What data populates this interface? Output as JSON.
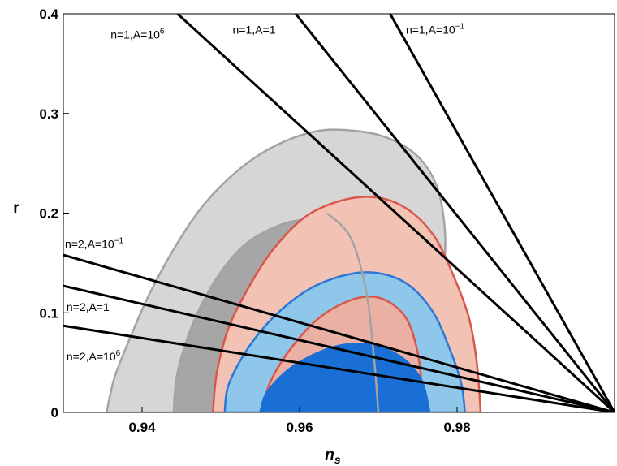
{
  "chart_data": {
    "type": "contour-with-lines",
    "xlabel": "n",
    "xlabel_sub": "s",
    "ylabel": "r",
    "xlim": [
      0.93,
      1.0
    ],
    "ylim": [
      0,
      0.4
    ],
    "x_ticks": [
      {
        "value": 0.94,
        "label": "0.94"
      },
      {
        "value": 0.96,
        "label": "0.96"
      },
      {
        "value": 0.98,
        "label": "0.98"
      }
    ],
    "y_ticks": [
      {
        "value": 0,
        "label": "0"
      },
      {
        "value": 0.1,
        "label": "0.1"
      },
      {
        "value": 0.2,
        "label": "0.2"
      },
      {
        "value": 0.3,
        "label": "0.3"
      },
      {
        "value": 0.4,
        "label": "0.4"
      }
    ],
    "colors": {
      "grey_outer": "#d6d6d6",
      "grey_inner": "#a6a6a6",
      "grey_edge": "#a3a3a3",
      "red_outer": "#f2c2b4",
      "red_inner": "#e9b0a3",
      "red_edge": "#d9564a",
      "blue_outer": "#8ec7ea",
      "blue_inner": "#1a6fd6",
      "blue_edge": "#2b78d8",
      "line": "#000000"
    },
    "contours": [
      {
        "name": "grey-outer",
        "fill": "grey_outer",
        "edge": "grey_edge",
        "points": [
          [
            0.9355,
            0
          ],
          [
            0.9365,
            0.035
          ],
          [
            0.9385,
            0.075
          ],
          [
            0.941,
            0.12
          ],
          [
            0.9445,
            0.17
          ],
          [
            0.948,
            0.21
          ],
          [
            0.9525,
            0.245
          ],
          [
            0.957,
            0.268
          ],
          [
            0.962,
            0.282
          ],
          [
            0.9665,
            0.283
          ],
          [
            0.971,
            0.276
          ],
          [
            0.975,
            0.257
          ],
          [
            0.9775,
            0.225
          ],
          [
            0.9785,
            0.175
          ],
          [
            0.978,
            0.12
          ],
          [
            0.9775,
            0.07
          ],
          [
            0.977,
            0.03
          ],
          [
            0.9765,
            0
          ]
        ]
      },
      {
        "name": "grey-inner",
        "fill": "grey_inner",
        "edge": "grey_edge",
        "points": [
          [
            0.944,
            0
          ],
          [
            0.9445,
            0.04
          ],
          [
            0.9465,
            0.09
          ],
          [
            0.9495,
            0.135
          ],
          [
            0.953,
            0.168
          ],
          [
            0.9575,
            0.188
          ],
          [
            0.961,
            0.193
          ],
          [
            0.9635,
            0.185
          ],
          [
            0.9655,
            0.16
          ],
          [
            0.967,
            0.12
          ],
          [
            0.9675,
            0.07
          ],
          [
            0.968,
            0.03
          ],
          [
            0.9685,
            0
          ]
        ]
      },
      {
        "name": "red-outer",
        "fill": "red_outer",
        "edge": "red_edge",
        "points": [
          [
            0.949,
            0
          ],
          [
            0.9495,
            0.04
          ],
          [
            0.951,
            0.085
          ],
          [
            0.9535,
            0.125
          ],
          [
            0.9565,
            0.162
          ],
          [
            0.9605,
            0.195
          ],
          [
            0.965,
            0.212
          ],
          [
            0.9695,
            0.216
          ],
          [
            0.9735,
            0.205
          ],
          [
            0.977,
            0.178
          ],
          [
            0.9795,
            0.138
          ],
          [
            0.9815,
            0.095
          ],
          [
            0.9825,
            0.05
          ],
          [
            0.983,
            0
          ]
        ]
      },
      {
        "name": "blue-outer",
        "fill": "blue_outer",
        "edge": "blue_edge",
        "points": [
          [
            0.9505,
            0
          ],
          [
            0.951,
            0.028
          ],
          [
            0.9535,
            0.065
          ],
          [
            0.957,
            0.098
          ],
          [
            0.9615,
            0.125
          ],
          [
            0.9665,
            0.139
          ],
          [
            0.9705,
            0.139
          ],
          [
            0.974,
            0.127
          ],
          [
            0.977,
            0.1
          ],
          [
            0.979,
            0.065
          ],
          [
            0.9805,
            0.03
          ],
          [
            0.981,
            0
          ]
        ]
      },
      {
        "name": "red-inner",
        "fill": "red_inner",
        "edge": "red_edge",
        "points": [
          [
            0.9555,
            0
          ],
          [
            0.956,
            0.025
          ],
          [
            0.9585,
            0.06
          ],
          [
            0.9625,
            0.095
          ],
          [
            0.967,
            0.114
          ],
          [
            0.9705,
            0.114
          ],
          [
            0.9735,
            0.095
          ],
          [
            0.975,
            0.06
          ],
          [
            0.9755,
            0.025
          ],
          [
            0.9755,
            0
          ]
        ]
      },
      {
        "name": "blue-inner",
        "fill": "blue_inner",
        "edge": "blue_inner",
        "points": [
          [
            0.955,
            0
          ],
          [
            0.956,
            0.022
          ],
          [
            0.9595,
            0.048
          ],
          [
            0.9645,
            0.066
          ],
          [
            0.969,
            0.068
          ],
          [
            0.973,
            0.055
          ],
          [
            0.9755,
            0.032
          ],
          [
            0.9765,
            0
          ]
        ]
      }
    ],
    "grey_line": {
      "name": "grey-line",
      "edge": "grey_edge",
      "points": [
        [
          0.97,
          0
        ],
        [
          0.9695,
          0.05
        ],
        [
          0.9685,
          0.12
        ],
        [
          0.9665,
          0.175
        ],
        [
          0.9635,
          0.2
        ]
      ]
    },
    "lines": [
      {
        "label": "n=1,A=10",
        "sup": "6",
        "from": [
          0.9445,
          0.4
        ],
        "to": [
          1.0,
          0
        ],
        "label_at": [
          0.936,
          0.375
        ]
      },
      {
        "label": "n=1,A=1",
        "sup": "",
        "from": [
          0.9595,
          0.4
        ],
        "to": [
          1.0,
          0
        ],
        "label_at": [
          0.9515,
          0.38
        ]
      },
      {
        "label": "n=1,A=10",
        "sup": "−1",
        "from": [
          0.9715,
          0.4
        ],
        "to": [
          1.0,
          0
        ],
        "label_at": [
          0.9735,
          0.38
        ]
      },
      {
        "label": "n=2,A=10",
        "sup": "−1",
        "from": [
          0.93,
          0.158
        ],
        "to": [
          1.0,
          0
        ],
        "label_at": [
          0.9302,
          0.165
        ]
      },
      {
        "label": "n=2,A=1",
        "sup": "",
        "from": [
          0.93,
          0.127
        ],
        "to": [
          1.0,
          0
        ],
        "label_at": [
          0.9304,
          0.102
        ]
      },
      {
        "label": "n=2,A=10",
        "sup": "6",
        "from": [
          0.93,
          0.087
        ],
        "to": [
          1.0,
          0
        ],
        "label_at": [
          0.9304,
          0.052
        ]
      }
    ]
  }
}
